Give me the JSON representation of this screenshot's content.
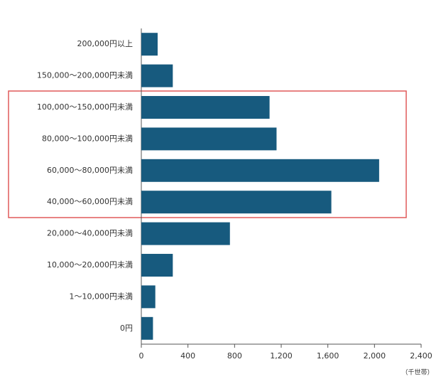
{
  "chart_data": {
    "type": "bar",
    "orientation": "horizontal",
    "categories": [
      "200,000円以上",
      "150,000～200,000円未満",
      "100,000～150,000円未満",
      "80,000～100,000円未満",
      "60,000～80,000円未満",
      "40,000～60,000円未満",
      "20,000～40,000円未満",
      "10,000～20,000円未満",
      "1～10,000円未満",
      "0円"
    ],
    "values": [
      140,
      270,
      1100,
      1160,
      2040,
      1630,
      760,
      270,
      120,
      100
    ],
    "color": "#175a7e",
    "xlim": [
      0,
      2400
    ],
    "xticks": [
      0,
      400,
      800,
      {
        "value": 1200,
        "label": "1,200"
      },
      {
        "value": 1600,
        "label": "1,600"
      },
      {
        "value": 2000,
        "label": "2,000"
      },
      {
        "value": 2400,
        "label": "2,400"
      }
    ],
    "unit_label": "（千世帯）"
  }
}
